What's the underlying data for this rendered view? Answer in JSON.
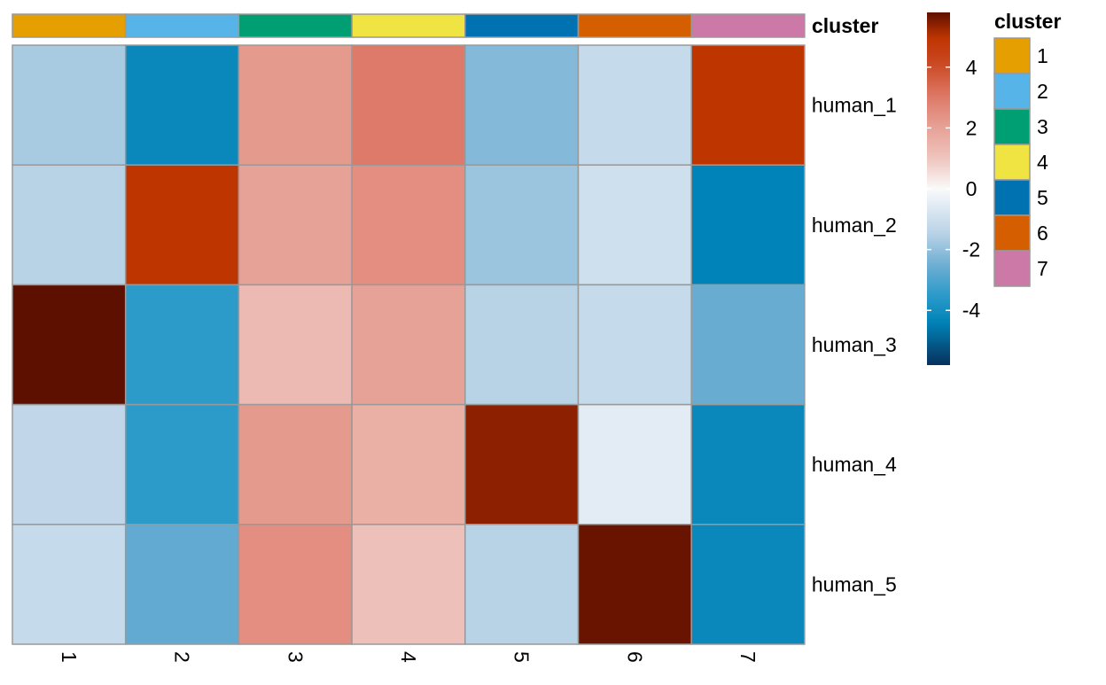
{
  "chart_data": {
    "type": "heatmap",
    "columns": [
      "1",
      "2",
      "3",
      "4",
      "5",
      "6",
      "7"
    ],
    "rows": [
      "human_1",
      "human_2",
      "human_3",
      "human_4",
      "human_5"
    ],
    "values": [
      [
        -1.7,
        -4.2,
        2.2,
        3.0,
        -2.2,
        -1.2,
        5.0
      ],
      [
        -1.5,
        5.0,
        2.0,
        2.5,
        -1.9,
        -1.0,
        -4.4
      ],
      [
        5.8,
        -3.5,
        1.3,
        2.0,
        -1.5,
        -1.2,
        -2.6
      ],
      [
        -1.3,
        -3.5,
        2.2,
        1.6,
        5.4,
        -0.5,
        -4.2
      ],
      [
        -1.2,
        -2.7,
        2.5,
        1.1,
        -1.5,
        5.7,
        -4.2
      ]
    ],
    "annotation": {
      "title": "cluster",
      "levels": [
        "1",
        "2",
        "3",
        "4",
        "5",
        "6",
        "7"
      ],
      "colors": [
        "#E69F00",
        "#56B4E9",
        "#009E73",
        "#F0E442",
        "#0072B2",
        "#D55E00",
        "#CC79A7"
      ],
      "column_cluster": [
        "1",
        "2",
        "3",
        "4",
        "5",
        "6",
        "7"
      ]
    },
    "colorbar": {
      "range": [
        -5.8,
        5.8
      ],
      "ticks": [
        "4",
        "2",
        "0",
        "-2",
        "-4"
      ],
      "tick_values": [
        4,
        2,
        0,
        -2,
        -4
      ]
    },
    "legend_title": "cluster",
    "legend_placement": "right"
  }
}
